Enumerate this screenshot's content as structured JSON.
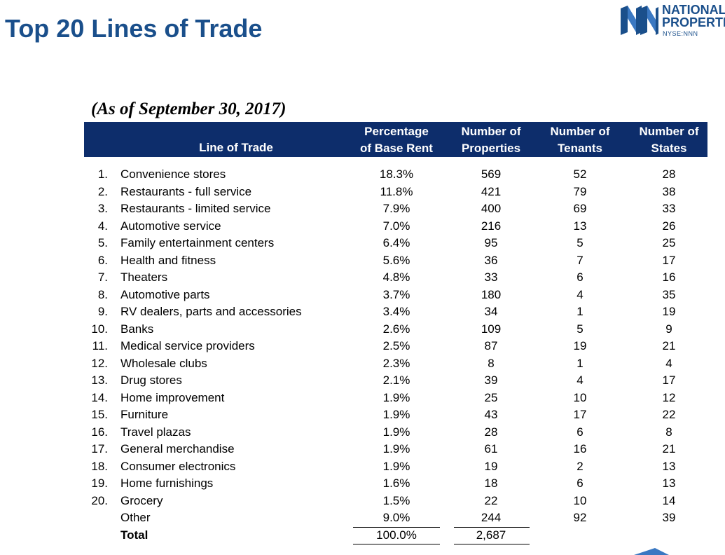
{
  "title": "Top 20 Lines of Trade",
  "logo": {
    "name_line1": "NATIONAL",
    "name_line2": "PROPERTIES",
    "ticker": "NYSE:NNN"
  },
  "subtitle": "(As of September 30, 2017)",
  "colors": {
    "title": "#1a4f8b",
    "header_band": "#0d2d6b"
  },
  "table": {
    "headers": {
      "line_of_trade": "Line of Trade",
      "pct_line1": "Percentage",
      "pct_line2": "of Base Rent",
      "props_line1": "Number of",
      "props_line2": "Properties",
      "tenants_line1": "Number of",
      "tenants_line2": "Tenants",
      "states_line1": "Number of",
      "states_line2": "States"
    },
    "rows": [
      {
        "num": "1.",
        "name": "Convenience stores",
        "pct": "18.3%",
        "props": "569",
        "tenants": "52",
        "states": "28"
      },
      {
        "num": "2.",
        "name": "Restaurants - full service",
        "pct": "11.8%",
        "props": "421",
        "tenants": "79",
        "states": "38"
      },
      {
        "num": "3.",
        "name": "Restaurants - limited service",
        "pct": "7.9%",
        "props": "400",
        "tenants": "69",
        "states": "33"
      },
      {
        "num": "4.",
        "name": "Automotive service",
        "pct": "7.0%",
        "props": "216",
        "tenants": "13",
        "states": "26"
      },
      {
        "num": "5.",
        "name": "Family entertainment centers",
        "pct": "6.4%",
        "props": "95",
        "tenants": "5",
        "states": "25"
      },
      {
        "num": "6.",
        "name": "Health and fitness",
        "pct": "5.6%",
        "props": "36",
        "tenants": "7",
        "states": "17"
      },
      {
        "num": "7.",
        "name": "Theaters",
        "pct": "4.8%",
        "props": "33",
        "tenants": "6",
        "states": "16"
      },
      {
        "num": "8.",
        "name": "Automotive parts",
        "pct": "3.7%",
        "props": "180",
        "tenants": "4",
        "states": "35"
      },
      {
        "num": "9.",
        "name": "RV dealers, parts and accessories",
        "pct": "3.4%",
        "props": "34",
        "tenants": "1",
        "states": "19"
      },
      {
        "num": "10.",
        "name": "Banks",
        "pct": "2.6%",
        "props": "109",
        "tenants": "5",
        "states": "9"
      },
      {
        "num": "11.",
        "name": "Medical service providers",
        "pct": "2.5%",
        "props": "87",
        "tenants": "19",
        "states": "21"
      },
      {
        "num": "12.",
        "name": "Wholesale clubs",
        "pct": "2.3%",
        "props": "8",
        "tenants": "1",
        "states": "4"
      },
      {
        "num": "13.",
        "name": "Drug stores",
        "pct": "2.1%",
        "props": "39",
        "tenants": "4",
        "states": "17"
      },
      {
        "num": "14.",
        "name": "Home improvement",
        "pct": "1.9%",
        "props": "25",
        "tenants": "10",
        "states": "12"
      },
      {
        "num": "15.",
        "name": "Furniture",
        "pct": "1.9%",
        "props": "43",
        "tenants": "17",
        "states": "22"
      },
      {
        "num": "16.",
        "name": "Travel plazas",
        "pct": "1.9%",
        "props": "28",
        "tenants": "6",
        "states": "8"
      },
      {
        "num": "17.",
        "name": "General merchandise",
        "pct": "1.9%",
        "props": "61",
        "tenants": "16",
        "states": "21"
      },
      {
        "num": "18.",
        "name": "Consumer electronics",
        "pct": "1.9%",
        "props": "19",
        "tenants": "2",
        "states": "13"
      },
      {
        "num": "19.",
        "name": "Home furnishings",
        "pct": "1.6%",
        "props": "18",
        "tenants": "6",
        "states": "13"
      },
      {
        "num": "20.",
        "name": "Grocery",
        "pct": "1.5%",
        "props": "22",
        "tenants": "10",
        "states": "14"
      },
      {
        "num": "",
        "name": "Other",
        "pct": "9.0%",
        "props": "244",
        "tenants": "92",
        "states": "39"
      }
    ],
    "total": {
      "name": "Total",
      "pct": "100.0%",
      "props": "2,687"
    }
  }
}
